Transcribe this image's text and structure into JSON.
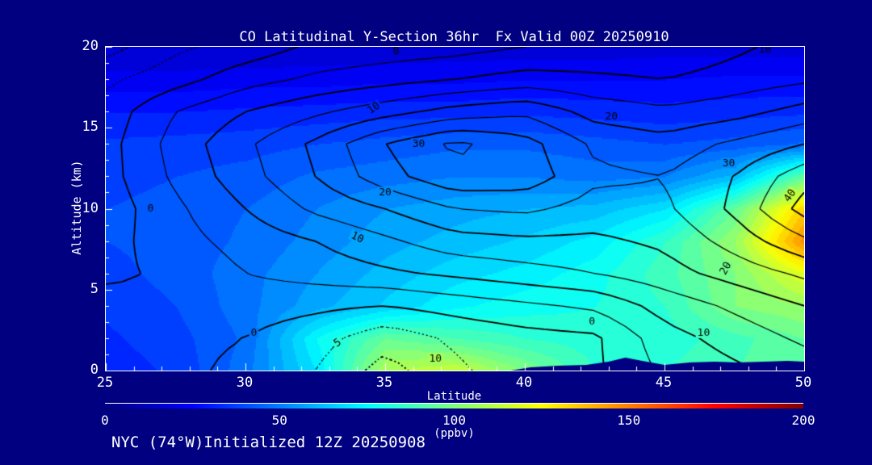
{
  "header": {
    "title": "CO Latitudinal Y-Section 36hr  Fx Valid 00Z 20250910"
  },
  "footer": {
    "text": "NYC (74°W)Initialized 12Z 20250908"
  },
  "colors": {
    "background": "#000080",
    "text": "#ffffff",
    "contour_line": "#000000",
    "terrain": "#000080",
    "frame": "#ffffff"
  },
  "chart_data": {
    "type": "heatmap",
    "title": "CO Latitudinal Y-Section 36hr  Fx Valid 00Z 20250910",
    "xlabel": "Latitude",
    "ylabel": "Altitude (km)",
    "x_range": [
      25,
      50
    ],
    "y_range": [
      0,
      20
    ],
    "x_ticks": [
      25,
      30,
      35,
      40,
      45,
      50
    ],
    "y_ticks": [
      0,
      5,
      10,
      15,
      20
    ],
    "x_minor_step": 1,
    "y_minor_step": 1,
    "grid": false,
    "colorbar": {
      "min": 0,
      "max": 200,
      "ticks": [
        0,
        50,
        100,
        150,
        200
      ],
      "units": "(ppbv)",
      "colormap": "jet",
      "fill_step": 5
    },
    "fill_field_ppbv": {
      "lats": [
        25,
        27.5,
        30,
        32.5,
        35,
        37.5,
        40,
        42.5,
        45,
        47.5,
        50
      ],
      "alts": [
        0,
        2,
        4,
        6,
        8,
        10,
        12,
        14,
        16,
        18,
        20
      ],
      "values": [
        [
          32,
          36,
          48,
          70,
          110,
          115,
          100,
          85,
          85,
          90,
          95
        ],
        [
          34,
          38,
          46,
          75,
          95,
          90,
          85,
          82,
          82,
          88,
          95
        ],
        [
          36,
          40,
          48,
          58,
          66,
          74,
          78,
          80,
          85,
          100,
          105
        ],
        [
          38,
          42,
          48,
          55,
          62,
          68,
          72,
          78,
          88,
          100,
          120
        ],
        [
          40,
          42,
          46,
          52,
          58,
          62,
          66,
          72,
          85,
          105,
          148
        ],
        [
          40,
          42,
          45,
          50,
          55,
          58,
          60,
          62,
          70,
          95,
          135
        ],
        [
          38,
          40,
          42,
          46,
          48,
          50,
          50,
          48,
          50,
          62,
          95
        ],
        [
          36,
          37,
          38,
          40,
          42,
          44,
          44,
          42,
          40,
          42,
          46
        ],
        [
          30,
          30,
          31,
          32,
          33,
          33,
          34,
          33,
          32,
          33,
          34
        ],
        [
          22,
          22,
          23,
          23,
          24,
          24,
          25,
          25,
          25,
          26,
          26
        ],
        [
          15,
          15,
          15,
          16,
          16,
          17,
          17,
          17,
          18,
          18,
          18
        ]
      ]
    },
    "line_contours": {
      "levels": [
        -10,
        -5,
        0,
        5,
        10,
        15,
        20,
        25,
        30,
        35,
        40
      ],
      "negative_style": "dotted",
      "lats": [
        25,
        27.5,
        30,
        32.5,
        35,
        37.5,
        40,
        42.5,
        45,
        47.5,
        50
      ],
      "alts": [
        0,
        2,
        4,
        6,
        8,
        10,
        12,
        14,
        16,
        18,
        20
      ],
      "values": [
        [
          2,
          1,
          -1,
          -5,
          -12,
          -6,
          -2,
          -1,
          6,
          9,
          12
        ],
        [
          3,
          1,
          0,
          -3,
          -8,
          -4,
          -2,
          -1,
          8,
          12,
          16
        ],
        [
          2,
          0,
          2,
          1,
          0,
          2,
          4,
          6,
          12,
          16,
          20
        ],
        [
          -1,
          1,
          5,
          7,
          9,
          11,
          13,
          15,
          18,
          22,
          26
        ],
        [
          -2,
          3,
          7,
          10,
          14,
          18,
          19,
          19,
          21,
          27,
          34
        ],
        [
          -3,
          4,
          10,
          16,
          20,
          25,
          26,
          23,
          24,
          31,
          42
        ],
        [
          -2,
          6,
          13,
          20,
          28,
          34,
          33,
          26,
          25,
          30,
          38
        ],
        [
          -2,
          7,
          14,
          21,
          30,
          36,
          32,
          24,
          22,
          26,
          30
        ],
        [
          -3,
          5,
          10,
          14,
          18,
          22,
          24,
          18,
          16,
          18,
          22
        ],
        [
          -6,
          -2,
          3,
          6,
          8,
          10,
          12,
          11,
          10,
          12,
          14
        ],
        [
          -12,
          -6,
          -3,
          1,
          2,
          3,
          5,
          6,
          6,
          9,
          12
        ]
      ]
    },
    "contour_labels": [
      {
        "text": "0",
        "lat": 35.4,
        "alt": 19.7,
        "rot": -10
      },
      {
        "text": "10",
        "lat": 48.6,
        "alt": 19.8,
        "rot": 0
      },
      {
        "text": "10",
        "lat": 34.6,
        "alt": 16.2,
        "rot": -35
      },
      {
        "text": "20",
        "lat": 43.1,
        "alt": 15.7,
        "rot": 0
      },
      {
        "text": "30",
        "lat": 36.2,
        "alt": 14.0,
        "rot": 0
      },
      {
        "text": "20",
        "lat": 35.0,
        "alt": 11.0,
        "rot": 0
      },
      {
        "text": "10",
        "lat": 34.0,
        "alt": 8.2,
        "rot": 25
      },
      {
        "text": "30",
        "lat": 47.3,
        "alt": 12.8,
        "rot": 0
      },
      {
        "text": "40",
        "lat": 49.5,
        "alt": 10.8,
        "rot": -55
      },
      {
        "text": "20",
        "lat": 47.2,
        "alt": 6.3,
        "rot": -60
      },
      {
        "text": "0",
        "lat": 26.6,
        "alt": 10.0,
        "rot": 0
      },
      {
        "text": "0",
        "lat": 42.4,
        "alt": 3.0,
        "rot": 0
      },
      {
        "text": "10",
        "lat": 46.4,
        "alt": 2.3,
        "rot": 0
      },
      {
        "text": "0",
        "lat": 30.3,
        "alt": 2.3,
        "rot": 0
      },
      {
        "text": "10",
        "lat": 36.8,
        "alt": 0.7,
        "rot": 0
      },
      {
        "text": "5",
        "lat": 33.3,
        "alt": 1.7,
        "rot": -35
      }
    ],
    "terrain_profile": [
      [
        39.5,
        0
      ],
      [
        40.2,
        0.2
      ],
      [
        41.2,
        0.3
      ],
      [
        42.2,
        0.35
      ],
      [
        43.0,
        0.55
      ],
      [
        43.6,
        0.8
      ],
      [
        44.2,
        0.6
      ],
      [
        45.0,
        0.35
      ],
      [
        45.9,
        0.5
      ],
      [
        46.8,
        0.55
      ],
      [
        47.6,
        0.5
      ],
      [
        48.6,
        0.55
      ],
      [
        49.4,
        0.6
      ],
      [
        50,
        0.55
      ]
    ]
  }
}
